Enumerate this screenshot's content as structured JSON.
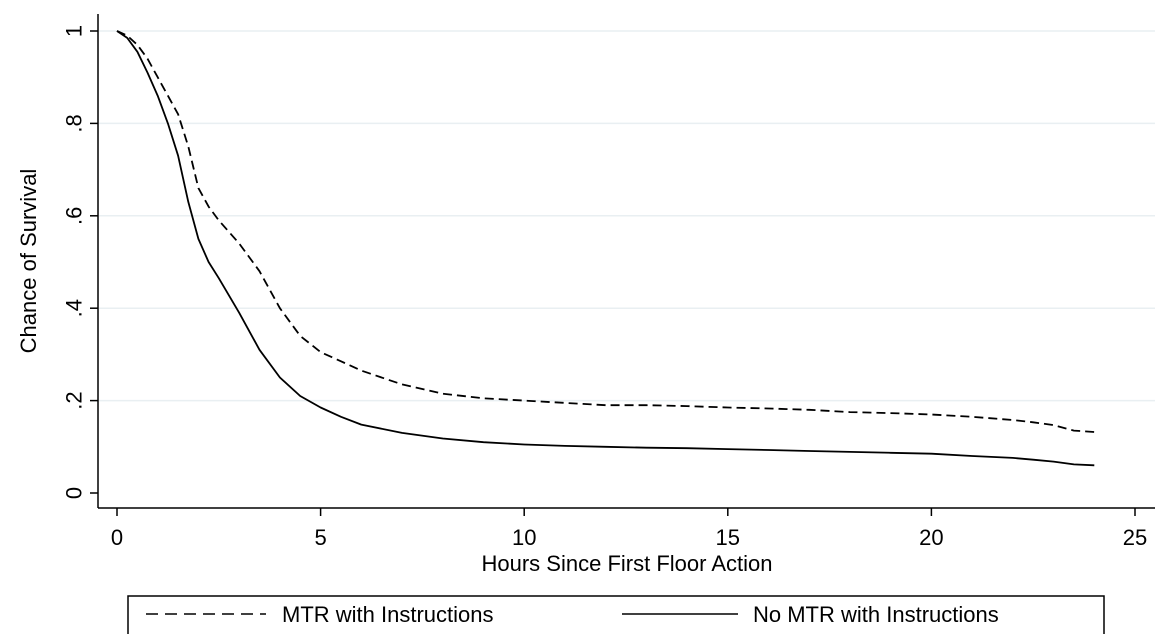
{
  "chart_data": {
    "type": "line",
    "title": "",
    "xlabel": "Hours Since First Floor Action",
    "ylabel": "Chance of Survival",
    "xlim": [
      0,
      25
    ],
    "ylim": [
      0,
      1
    ],
    "x_ticks": [
      0,
      5,
      10,
      15,
      20,
      25
    ],
    "x_tick_labels": [
      "0",
      "5",
      "10",
      "15",
      "20",
      "25"
    ],
    "y_ticks": [
      0,
      0.2,
      0.4,
      0.6,
      0.8,
      1
    ],
    "y_tick_labels": [
      "0",
      ".2",
      ".4",
      ".6",
      ".8",
      "1"
    ],
    "grid": true,
    "legend_position": "bottom",
    "series": [
      {
        "name": "MTR with Instructions",
        "style": "dashed",
        "color": "#000000",
        "x": [
          0,
          0.25,
          0.5,
          0.75,
          1.0,
          1.25,
          1.5,
          1.75,
          2.0,
          2.25,
          2.5,
          3.0,
          3.5,
          4.0,
          4.5,
          5.0,
          5.5,
          6.0,
          7.0,
          8.0,
          9.0,
          10.0,
          11.0,
          12.0,
          13.0,
          14.0,
          15.0,
          16.0,
          17.0,
          18.0,
          19.0,
          20.0,
          21.0,
          22.0,
          22.5,
          23.0,
          23.5,
          24.0
        ],
        "y": [
          1.0,
          0.99,
          0.97,
          0.94,
          0.9,
          0.86,
          0.82,
          0.75,
          0.66,
          0.62,
          0.59,
          0.54,
          0.48,
          0.4,
          0.34,
          0.305,
          0.285,
          0.265,
          0.235,
          0.215,
          0.205,
          0.2,
          0.195,
          0.19,
          0.19,
          0.188,
          0.185,
          0.183,
          0.18,
          0.175,
          0.173,
          0.17,
          0.165,
          0.158,
          0.153,
          0.147,
          0.135,
          0.132
        ]
      },
      {
        "name": "No MTR with Instructions",
        "style": "solid",
        "color": "#000000",
        "x": [
          0,
          0.25,
          0.5,
          0.75,
          1.0,
          1.25,
          1.5,
          1.75,
          2.0,
          2.25,
          2.5,
          3.0,
          3.5,
          4.0,
          4.5,
          5.0,
          5.5,
          6.0,
          7.0,
          8.0,
          9.0,
          10.0,
          11.0,
          12.0,
          13.0,
          14.0,
          15.0,
          16.0,
          17.0,
          18.0,
          19.0,
          20.0,
          21.0,
          22.0,
          22.5,
          23.0,
          23.5,
          24.0
        ],
        "y": [
          1.0,
          0.985,
          0.955,
          0.91,
          0.86,
          0.8,
          0.73,
          0.63,
          0.55,
          0.5,
          0.465,
          0.39,
          0.31,
          0.25,
          0.21,
          0.185,
          0.165,
          0.148,
          0.13,
          0.118,
          0.11,
          0.105,
          0.102,
          0.1,
          0.098,
          0.097,
          0.095,
          0.093,
          0.091,
          0.089,
          0.087,
          0.085,
          0.08,
          0.076,
          0.072,
          0.068,
          0.062,
          0.06
        ]
      }
    ]
  }
}
